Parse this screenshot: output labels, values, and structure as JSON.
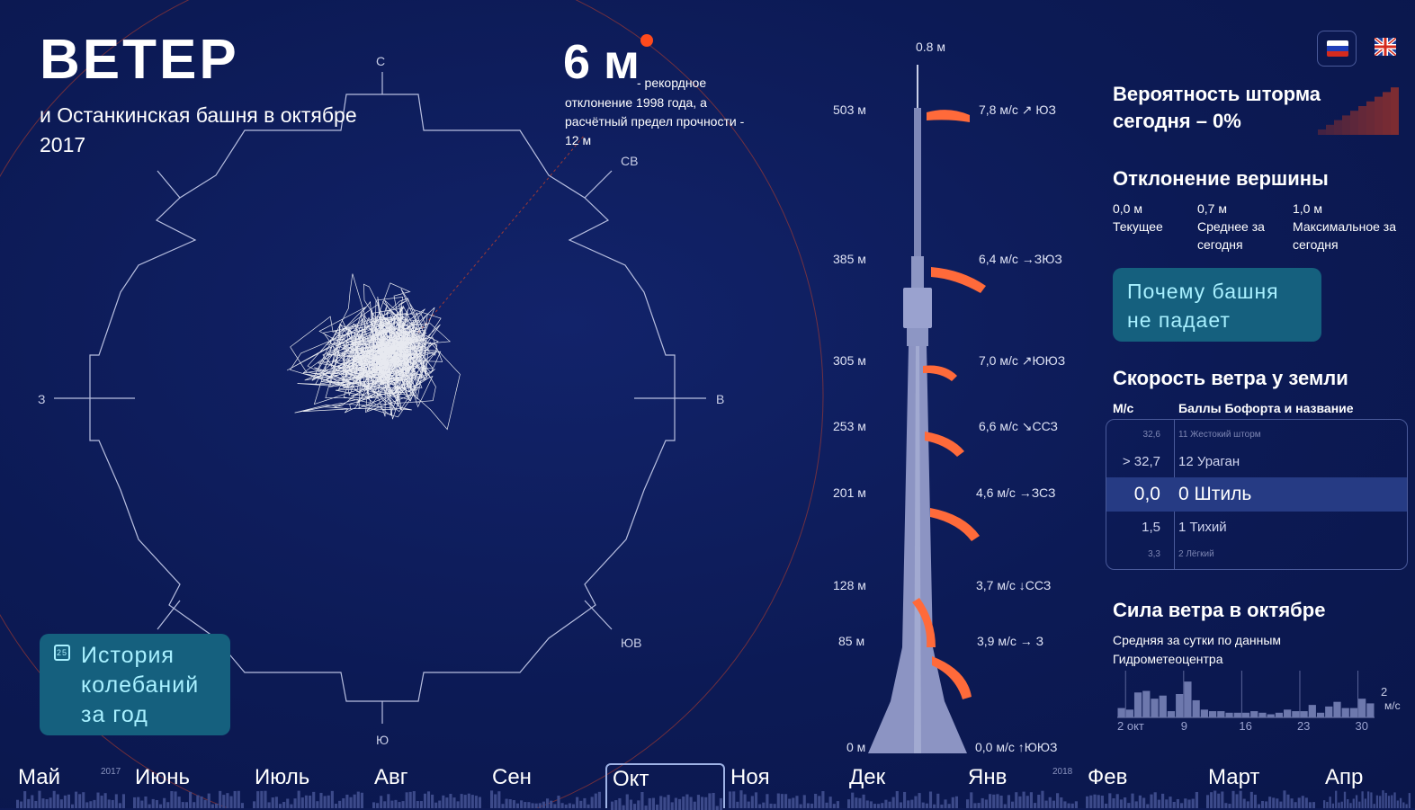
{
  "title": {
    "main": "ВЕТЕР",
    "subtitle": "и Останкинская башня в октябре 2017"
  },
  "record": {
    "value": "6 м",
    "note_a": "- рекордное",
    "note_b": "отклонение 1998 года, а расчётный предел прочности - 12 м"
  },
  "compass": {
    "n": "С",
    "ne": "СВ",
    "e": "В",
    "se": "ЮВ",
    "s": "Ю",
    "w": "З"
  },
  "tower": {
    "top_label": "0.8 м",
    "levels": [
      {
        "height": "503 м",
        "speed": "7,8 м/с ↗ ЮЗ"
      },
      {
        "height": "385 м",
        "speed": "6,4 м/с →ЗЮЗ"
      },
      {
        "height": "305 м",
        "speed": "7,0 м/с ↗ЮЮЗ"
      },
      {
        "height": "253 м",
        "speed": "6,6 м/с ↘ССЗ"
      },
      {
        "height": "201 м",
        "speed": "4,6 м/с →ЗСЗ"
      },
      {
        "height": "128 м",
        "speed": "3,7 м/с ↓ССЗ"
      },
      {
        "height": "85 м",
        "speed": "3,9 м/с → З"
      },
      {
        "height": "0 м",
        "speed": "0,0 м/с ↑ЮЮЗ"
      }
    ]
  },
  "storm": {
    "heading": "Вероятность шторма сегодня – 0%"
  },
  "deviation": {
    "heading": "Отклонение вершины",
    "items": [
      {
        "value": "0,0 м",
        "label": "Текущее"
      },
      {
        "value": "0,7 м",
        "label": "Среднее за сегодня"
      },
      {
        "value": "1,0 м",
        "label": "Максимальное за сегодня"
      }
    ]
  },
  "why_button": "Почему башня не падает",
  "ground": {
    "heading": "Скорость ветра у земли",
    "col_ms": "М/с",
    "col_bf": "Баллы Бофорта и название",
    "rows": [
      {
        "num": "32,6",
        "name": "11 Жестокий шторм"
      },
      {
        "num": "> 32,7",
        "name": "12 Ураган"
      },
      {
        "num": "0,0",
        "name": "0 Штиль"
      },
      {
        "num": "1,5",
        "name": "1 Тихий"
      },
      {
        "num": "3,3",
        "name": "2 Лёгкий"
      }
    ]
  },
  "force": {
    "heading": "Сила ветра в октябре",
    "sub": "Средняя за сутки по данным Гидрометеоцентра",
    "xticks": [
      "2 окт",
      "9",
      "16",
      "23",
      "30"
    ],
    "ylabel_val": "2",
    "ylabel_unit": "м/с"
  },
  "chart_data": {
    "type": "bar",
    "title": "Сила ветра в октябре",
    "x": [
      1,
      2,
      3,
      4,
      5,
      6,
      7,
      8,
      9,
      10,
      11,
      12,
      13,
      14,
      15,
      16,
      17,
      18,
      19,
      20,
      21,
      22,
      23,
      24,
      25,
      26,
      27,
      28,
      29,
      30,
      31
    ],
    "values": [
      0.6,
      0.5,
      1.6,
      1.7,
      1.2,
      1.4,
      0.4,
      1.5,
      2.3,
      1.1,
      0.5,
      0.4,
      0.4,
      0.3,
      0.3,
      0.3,
      0.4,
      0.3,
      0.2,
      0.3,
      0.5,
      0.4,
      0.4,
      0.8,
      0.3,
      0.7,
      1.0,
      0.6,
      0.6,
      1.2,
      0.9
    ],
    "xlabel": "",
    "ylabel": "м/с",
    "ylim": [
      0,
      3
    ]
  },
  "history_button": "История колебаний за год",
  "history_cal": "25",
  "timeline": {
    "months": [
      {
        "label": "Май",
        "year": "2017"
      },
      {
        "label": "Июнь",
        "year": ""
      },
      {
        "label": "Июль",
        "year": ""
      },
      {
        "label": "Авг",
        "year": ""
      },
      {
        "label": "Сен",
        "year": ""
      },
      {
        "label": "Окт",
        "year": ""
      },
      {
        "label": "Ноя",
        "year": ""
      },
      {
        "label": "Дек",
        "year": ""
      },
      {
        "label": "Янв",
        "year": "2018"
      },
      {
        "label": "Фев",
        "year": ""
      },
      {
        "label": "Март",
        "year": ""
      },
      {
        "label": "Апр",
        "year": ""
      }
    ]
  },
  "colors": {
    "background": "#0d1a55",
    "accent": "#15607e",
    "accent_text": "#a8f0ff",
    "record_dot": "#ff4a1c",
    "sock_red": "#ff5a2a"
  }
}
